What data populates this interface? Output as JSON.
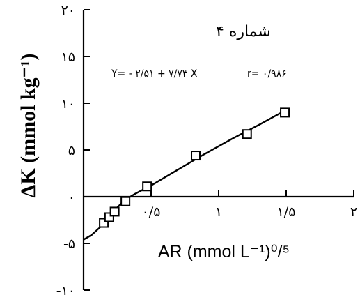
{
  "chart_data": {
    "type": "scatter",
    "title": "شماره ۴",
    "equation": "Y= - ۲/۵۱ + ۷/۷۳ X",
    "correlation": "r= ۰/۹۸۶",
    "xlabel": "AR (mmol L⁻¹)⁰/⁵",
    "ylabel": "ΔK (mmol kg⁻¹)",
    "xlim": [
      0,
      2
    ],
    "ylim": [
      -10,
      20
    ],
    "x_ticks": [
      {
        "value": 0.5,
        "label": "۰/۵"
      },
      {
        "value": 1,
        "label": "۱"
      },
      {
        "value": 1.5,
        "label": "۱/۵"
      },
      {
        "value": 2,
        "label": "۲"
      }
    ],
    "y_ticks": [
      {
        "value": 20,
        "label": "۲۰"
      },
      {
        "value": 15,
        "label": "۱۵"
      },
      {
        "value": 10,
        "label": "۱۰"
      },
      {
        "value": 5,
        "label": "۵"
      },
      {
        "value": 0,
        "label": "۰"
      },
      {
        "value": -5,
        "label": "-۵"
      },
      {
        "value": -10,
        "label": "-۱۰"
      }
    ],
    "points": [
      {
        "x": 0.15,
        "y": -2.8
      },
      {
        "x": 0.19,
        "y": -2.2
      },
      {
        "x": 0.23,
        "y": -1.6
      },
      {
        "x": 0.31,
        "y": -0.5
      },
      {
        "x": 0.47,
        "y": 1.1
      },
      {
        "x": 0.83,
        "y": 4.4
      },
      {
        "x": 1.21,
        "y": 6.7
      },
      {
        "x": 1.49,
        "y": 9.0
      }
    ],
    "fit_curve": [
      {
        "x": 0.0,
        "y": -4.6
      },
      {
        "x": 0.06,
        "y": -4.1
      },
      {
        "x": 0.12,
        "y": -3.3
      },
      {
        "x": 0.18,
        "y": -2.4
      },
      {
        "x": 0.24,
        "y": -1.3
      },
      {
        "x": 0.3,
        "y": -0.4
      },
      {
        "x": 0.38,
        "y": 0.3
      },
      {
        "x": 0.5,
        "y": 1.2
      },
      {
        "x": 0.7,
        "y": 2.9
      },
      {
        "x": 0.9,
        "y": 4.6
      },
      {
        "x": 1.1,
        "y": 6.2
      },
      {
        "x": 1.3,
        "y": 7.7
      },
      {
        "x": 1.49,
        "y": 9.2
      }
    ]
  }
}
